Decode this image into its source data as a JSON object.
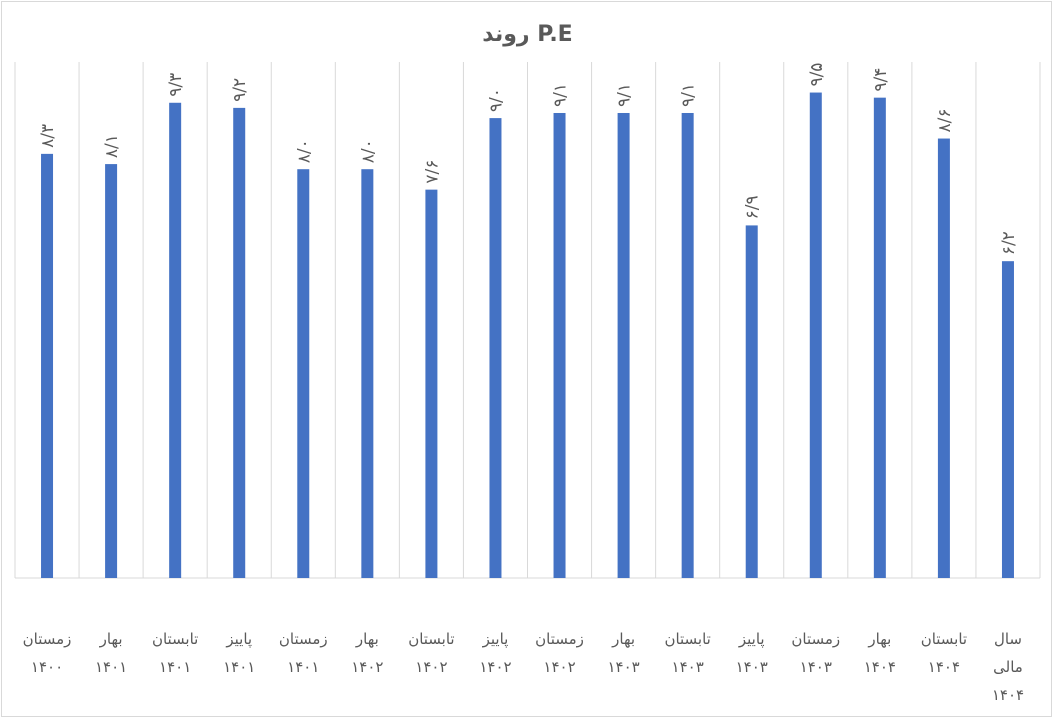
{
  "chart_data": {
    "type": "bar",
    "title": "روند  P.E",
    "categories": [
      [
        "زمستان",
        "۱۴۰۰"
      ],
      [
        "بهار",
        "۱۴۰۱"
      ],
      [
        "تابستان",
        "۱۴۰۱"
      ],
      [
        "پاییز",
        "۱۴۰۱"
      ],
      [
        "زمستان",
        "۱۴۰۱"
      ],
      [
        "بهار",
        "۱۴۰۲"
      ],
      [
        "تابستان",
        "۱۴۰۲"
      ],
      [
        "پاییز",
        "۱۴۰۲"
      ],
      [
        "زمستان",
        "۱۴۰۲"
      ],
      [
        "بهار",
        "۱۴۰۳"
      ],
      [
        "تابستان",
        "۱۴۰۳"
      ],
      [
        "پاییز",
        "۱۴۰۳"
      ],
      [
        "زمستان",
        "۱۴۰۳"
      ],
      [
        "بهار",
        "۱۴۰۴"
      ],
      [
        "تابستان",
        "۱۴۰۴"
      ],
      [
        "سال",
        "مالی",
        "۱۴۰۴"
      ]
    ],
    "values": [
      8.3,
      8.1,
      9.3,
      9.2,
      8.0,
      8.0,
      7.6,
      9.0,
      9.1,
      9.1,
      9.1,
      6.9,
      9.5,
      9.4,
      8.6,
      6.2
    ],
    "data_labels": [
      "۸/۳",
      "۸/۱",
      "۹/۳",
      "۹/۲",
      "۸/۰",
      "۸/۰",
      "۷/۶",
      "۹/۰",
      "۹/۱",
      "۹/۱",
      "۹/۱",
      "۶/۹",
      "۹/۵",
      "۹/۴",
      "۸/۶",
      "۶/۲"
    ],
    "ylim": [
      0,
      10
    ],
    "grid": "vertical",
    "legend": "none",
    "bar_color": "#4472c4"
  }
}
